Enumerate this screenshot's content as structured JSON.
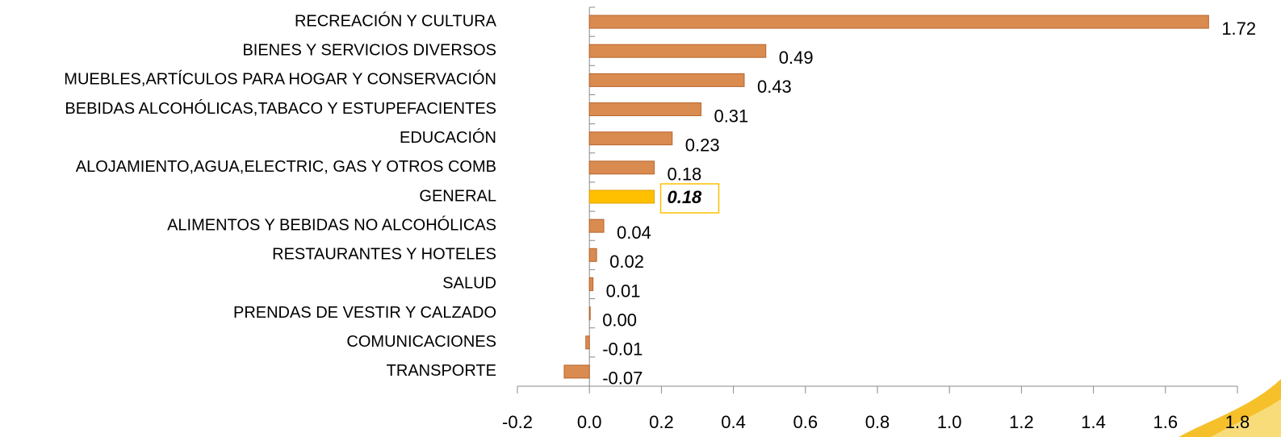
{
  "chart_data": {
    "type": "bar",
    "orientation": "horizontal",
    "categories": [
      "RECREACIÓN Y CULTURA",
      "BIENES Y SERVICIOS DIVERSOS",
      "MUEBLES,ARTÍCULOS PARA HOGAR Y CONSERVACIÓN",
      "BEBIDAS ALCOHÓLICAS,TABACO Y ESTUPEFACIENTES",
      "EDUCACIÓN",
      "ALOJAMIENTO,AGUA,ELECTRIC, GAS Y OTROS COMB",
      "GENERAL",
      "ALIMENTOS Y BEBIDAS NO ALCOHÓLICAS",
      "RESTAURANTES Y HOTELES",
      "SALUD",
      "PRENDAS DE VESTIR Y CALZADO",
      "COMUNICACIONES",
      "TRANSPORTE"
    ],
    "values": [
      1.72,
      0.49,
      0.43,
      0.31,
      0.23,
      0.18,
      0.18,
      0.04,
      0.02,
      0.01,
      0.0,
      -0.01,
      -0.07
    ],
    "value_labels": [
      "1.72",
      "0.49",
      "0.43",
      "0.31",
      "0.23",
      "0.18",
      "0.18",
      "0.04",
      "0.02",
      "0.01",
      "0.00",
      "-0.01",
      "-0.07"
    ],
    "colors": [
      "#d98b50",
      "#d98b50",
      "#d98b50",
      "#d98b50",
      "#d98b50",
      "#d98b50",
      "#ffc000",
      "#d98b50",
      "#d98b50",
      "#d98b50",
      "#d98b50",
      "#d98b50",
      "#d98b50"
    ],
    "xlim": [
      -0.2,
      1.8
    ],
    "xticks": [
      -0.2,
      {
        "value": 0,
        "label": "0.0"
      },
      0.2,
      0.4,
      0.6,
      0.8,
      {
        "value": 1,
        "label": "1.0"
      },
      1.2,
      1.4,
      1.6,
      1.8
    ],
    "grid": false
  }
}
